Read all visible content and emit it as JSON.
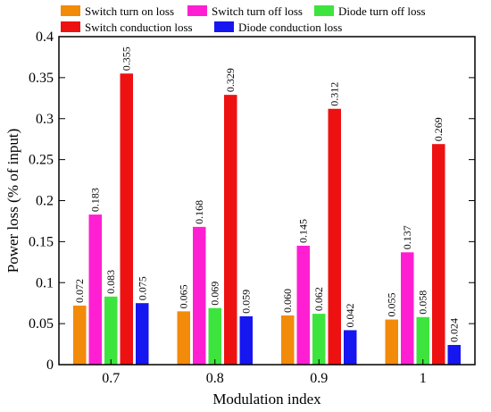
{
  "chart_data": {
    "type": "bar",
    "title": "",
    "xlabel": "Modulation index",
    "ylabel": "Power loss (% of input)",
    "ylim": [
      0,
      0.4
    ],
    "yticks": [
      "0",
      "0.05",
      "0.1",
      "0.15",
      "0.2",
      "0.25",
      "0.3",
      "0.35",
      "0.4"
    ],
    "categories": [
      "0.7",
      "0.8",
      "0.9",
      "1"
    ],
    "legend_position": "top",
    "grid": false,
    "series": [
      {
        "name": "Switch turn on loss",
        "color": "#f28a0a",
        "values": [
          0.072,
          0.065,
          0.06,
          0.055
        ],
        "labels": [
          "0.072",
          "0.065",
          "0.060",
          "0.055"
        ]
      },
      {
        "name": "Switch turn off loss",
        "color": "#ff1fd2",
        "values": [
          0.183,
          0.168,
          0.145,
          0.137
        ],
        "labels": [
          "0.183",
          "0.168",
          "0.145",
          "0.137"
        ]
      },
      {
        "name": "Diode turn off loss",
        "color": "#3ee43e",
        "values": [
          0.083,
          0.069,
          0.062,
          0.058
        ],
        "labels": [
          "0.083",
          "0.069",
          "0.062",
          "0.058"
        ]
      },
      {
        "name": "Switch conduction loss",
        "color": "#ee1111",
        "values": [
          0.355,
          0.329,
          0.312,
          0.269
        ],
        "labels": [
          "0.355",
          "0.329",
          "0.312",
          "0.269"
        ]
      },
      {
        "name": "Diode conduction loss",
        "color": "#1616f0",
        "values": [
          0.075,
          0.059,
          0.042,
          0.024
        ],
        "labels": [
          "0.075",
          "0.059",
          "0.042",
          "0.024"
        ]
      }
    ]
  }
}
